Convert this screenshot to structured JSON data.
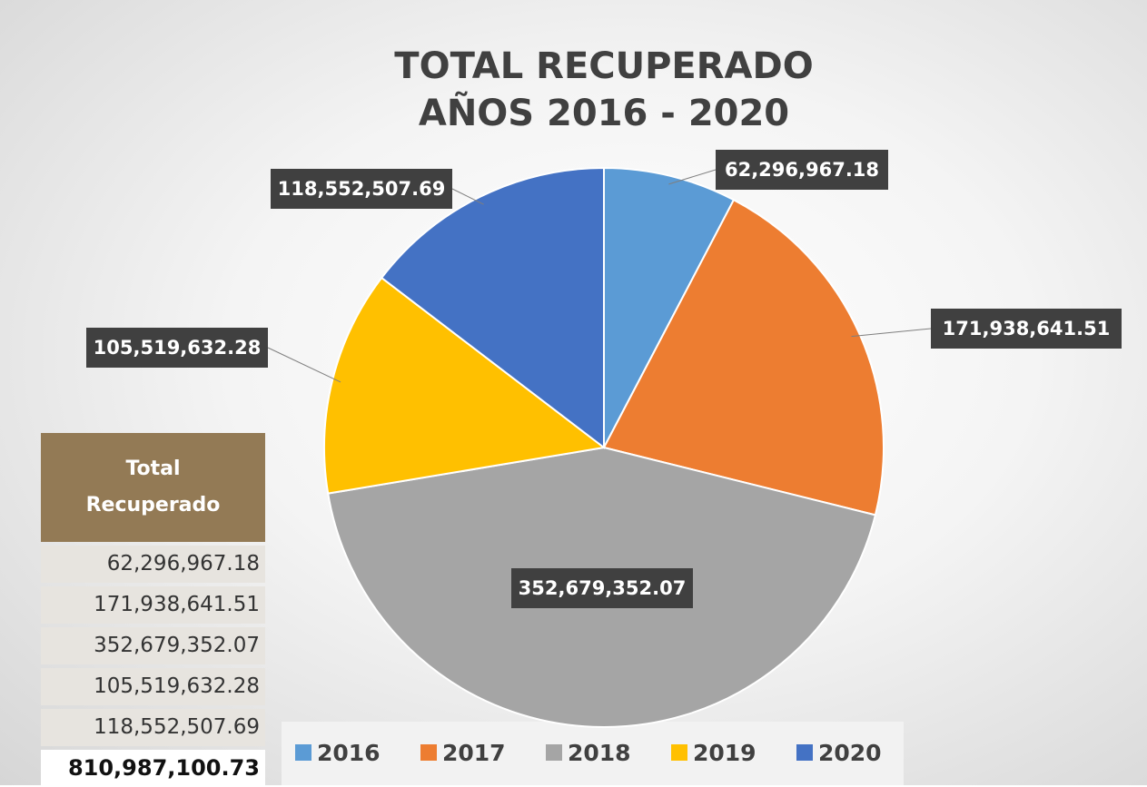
{
  "chart_data": {
    "type": "pie",
    "title": [
      "TOTAL RECUPERADO",
      "AÑOS 2016 - 2020"
    ],
    "categories": [
      "2016",
      "2017",
      "2018",
      "2019",
      "2020"
    ],
    "values": [
      62296967.18,
      171938641.51,
      352679352.07,
      105519632.28,
      118552507.69
    ],
    "value_labels": [
      "62,296,967.18",
      "171,938,641.51",
      "352,679,352.07",
      "105,519,632.28",
      "118,552,507.69"
    ],
    "colors": [
      "#5b9bd5",
      "#ed7d31",
      "#a5a5a5",
      "#ffc000",
      "#4472c4"
    ],
    "legend": "bottom"
  },
  "table": {
    "header": "Total Recuperado",
    "total": "810,987,100.73"
  }
}
